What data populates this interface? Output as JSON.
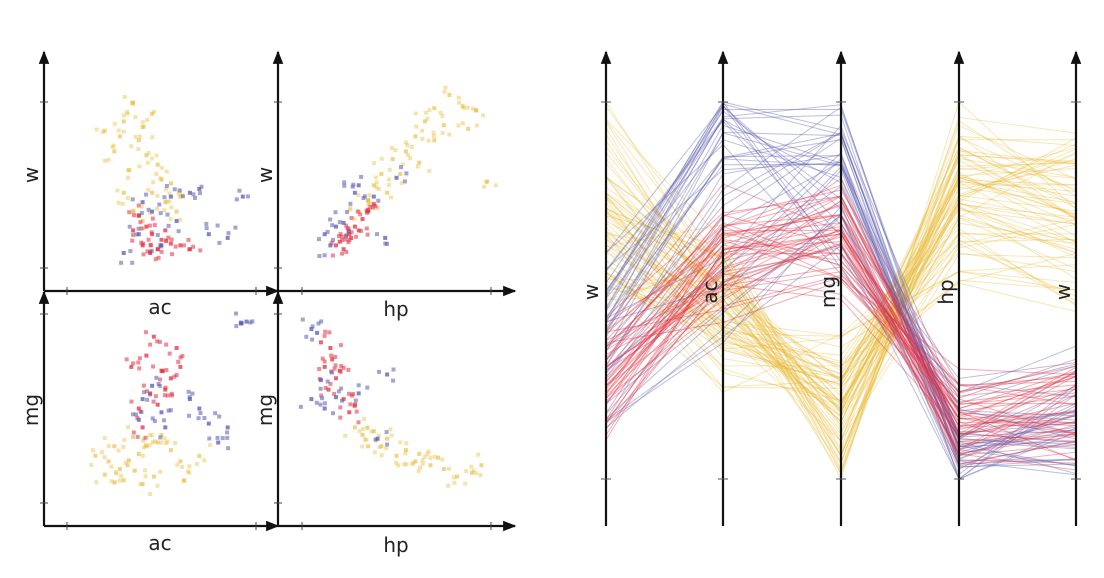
{
  "colors": {
    "yellow": "#e8b830",
    "red": "#e03040",
    "blue": "#5a5ab0",
    "axis": "#111111"
  },
  "chart_data": [
    {
      "type": "scatter",
      "panel": "scatter-w-vs-ac",
      "xlabel": "ac",
      "ylabel": "w",
      "series": [
        {
          "name": "yellow",
          "points": [
            [
              0.35,
              0.88
            ],
            [
              0.45,
              0.82
            ],
            [
              0.3,
              0.78
            ],
            [
              0.4,
              0.75
            ],
            [
              0.2,
              0.73
            ],
            [
              0.28,
              0.7
            ],
            [
              0.38,
              0.68
            ],
            [
              0.25,
              0.62
            ],
            [
              0.42,
              0.6
            ],
            [
              0.48,
              0.55
            ],
            [
              0.33,
              0.52
            ],
            [
              0.5,
              0.47
            ],
            [
              0.55,
              0.45
            ],
            [
              0.45,
              0.4
            ],
            [
              0.3,
              0.4
            ],
            [
              0.6,
              0.38
            ],
            [
              0.52,
              0.35
            ],
            [
              0.35,
              0.3
            ],
            [
              0.58,
              0.3
            ],
            [
              0.4,
              0.25
            ]
          ]
        },
        {
          "name": "red",
          "points": [
            [
              0.38,
              0.28
            ],
            [
              0.42,
              0.22
            ],
            [
              0.45,
              0.18
            ],
            [
              0.5,
              0.15
            ],
            [
              0.55,
              0.13
            ],
            [
              0.48,
              0.1
            ],
            [
              0.4,
              0.12
            ],
            [
              0.6,
              0.12
            ],
            [
              0.35,
              0.2
            ],
            [
              0.52,
              0.2
            ],
            [
              0.65,
              0.1
            ],
            [
              0.44,
              0.08
            ]
          ]
        },
        {
          "name": "blue",
          "points": [
            [
              0.4,
              0.35
            ],
            [
              0.55,
              0.38
            ],
            [
              0.65,
              0.4
            ],
            [
              0.7,
              0.42
            ],
            [
              0.45,
              0.3
            ],
            [
              0.38,
              0.18
            ],
            [
              0.5,
              0.12
            ],
            [
              0.75,
              0.18
            ],
            [
              0.85,
              0.16
            ],
            [
              0.93,
              0.38
            ],
            [
              0.3,
              0.08
            ],
            [
              0.58,
              0.25
            ]
          ]
        }
      ]
    },
    {
      "type": "scatter",
      "panel": "scatter-w-vs-hp",
      "xlabel": "hp",
      "ylabel": "w",
      "series": [
        {
          "name": "yellow",
          "points": [
            [
              0.78,
              0.92
            ],
            [
              0.7,
              0.85
            ],
            [
              0.85,
              0.86
            ],
            [
              0.92,
              0.84
            ],
            [
              0.65,
              0.78
            ],
            [
              0.75,
              0.76
            ],
            [
              0.88,
              0.74
            ],
            [
              0.6,
              0.7
            ],
            [
              0.7,
              0.68
            ],
            [
              0.55,
              0.62
            ],
            [
              0.48,
              0.58
            ],
            [
              0.62,
              0.56
            ],
            [
              0.42,
              0.5
            ],
            [
              0.52,
              0.5
            ],
            [
              0.38,
              0.44
            ],
            [
              0.45,
              0.4
            ],
            [
              0.35,
              0.36
            ],
            [
              0.4,
              0.32
            ],
            [
              0.3,
              0.3
            ],
            [
              0.98,
              0.46
            ]
          ]
        },
        {
          "name": "red",
          "points": [
            [
              0.2,
              0.14
            ],
            [
              0.25,
              0.18
            ],
            [
              0.28,
              0.22
            ],
            [
              0.32,
              0.26
            ],
            [
              0.35,
              0.3
            ],
            [
              0.22,
              0.1
            ],
            [
              0.18,
              0.12
            ],
            [
              0.3,
              0.2
            ],
            [
              0.38,
              0.34
            ],
            [
              0.26,
              0.16
            ]
          ]
        },
        {
          "name": "blue",
          "points": [
            [
              0.15,
              0.12
            ],
            [
              0.12,
              0.18
            ],
            [
              0.22,
              0.24
            ],
            [
              0.28,
              0.4
            ],
            [
              0.3,
              0.44
            ],
            [
              0.38,
              0.38
            ],
            [
              0.5,
              0.48
            ],
            [
              0.44,
              0.16
            ],
            [
              0.18,
              0.22
            ]
          ]
        }
      ]
    },
    {
      "type": "scatter",
      "panel": "scatter-mg-vs-ac",
      "xlabel": "ac",
      "ylabel": "mg",
      "series": [
        {
          "name": "yellow",
          "points": [
            [
              0.15,
              0.25
            ],
            [
              0.22,
              0.22
            ],
            [
              0.28,
              0.18
            ],
            [
              0.32,
              0.2
            ],
            [
              0.38,
              0.26
            ],
            [
              0.42,
              0.3
            ],
            [
              0.48,
              0.32
            ],
            [
              0.55,
              0.28
            ],
            [
              0.3,
              0.12
            ],
            [
              0.4,
              0.1
            ],
            [
              0.25,
              0.3
            ],
            [
              0.5,
              0.36
            ],
            [
              0.6,
              0.22
            ],
            [
              0.7,
              0.25
            ],
            [
              0.35,
              0.35
            ],
            [
              0.46,
              0.14
            ],
            [
              0.2,
              0.15
            ],
            [
              0.62,
              0.12
            ]
          ]
        },
        {
          "name": "red",
          "points": [
            [
              0.42,
              0.78
            ],
            [
              0.5,
              0.7
            ],
            [
              0.55,
              0.66
            ],
            [
              0.6,
              0.72
            ],
            [
              0.44,
              0.58
            ],
            [
              0.48,
              0.52
            ],
            [
              0.38,
              0.5
            ],
            [
              0.52,
              0.6
            ],
            [
              0.4,
              0.4
            ],
            [
              0.58,
              0.82
            ],
            [
              0.34,
              0.72
            ],
            [
              0.46,
              0.88
            ]
          ]
        },
        {
          "name": "blue",
          "points": [
            [
              0.45,
              0.62
            ],
            [
              0.4,
              0.55
            ],
            [
              0.5,
              0.48
            ],
            [
              0.65,
              0.55
            ],
            [
              0.7,
              0.5
            ],
            [
              0.75,
              0.42
            ],
            [
              0.8,
              0.32
            ],
            [
              0.92,
              0.95
            ],
            [
              0.95,
              0.96
            ],
            [
              0.38,
              0.44
            ],
            [
              0.52,
              0.4
            ],
            [
              0.85,
              0.4
            ]
          ]
        }
      ]
    },
    {
      "type": "scatter",
      "panel": "scatter-mg-vs-hp",
      "xlabel": "hp",
      "ylabel": "mg",
      "series": [
        {
          "name": "yellow",
          "points": [
            [
              0.28,
              0.4
            ],
            [
              0.32,
              0.36
            ],
            [
              0.38,
              0.38
            ],
            [
              0.42,
              0.3
            ],
            [
              0.55,
              0.28
            ],
            [
              0.6,
              0.22
            ],
            [
              0.68,
              0.2
            ],
            [
              0.75,
              0.18
            ],
            [
              0.82,
              0.14
            ],
            [
              0.9,
              0.16
            ],
            [
              0.95,
              0.2
            ],
            [
              0.5,
              0.25
            ],
            [
              0.35,
              0.3
            ],
            [
              0.45,
              0.34
            ],
            [
              0.62,
              0.26
            ],
            [
              0.72,
              0.24
            ]
          ]
        },
        {
          "name": "red",
          "points": [
            [
              0.1,
              0.85
            ],
            [
              0.15,
              0.82
            ],
            [
              0.12,
              0.72
            ],
            [
              0.18,
              0.66
            ],
            [
              0.14,
              0.6
            ],
            [
              0.22,
              0.55
            ],
            [
              0.25,
              0.48
            ],
            [
              0.2,
              0.7
            ],
            [
              0.28,
              0.52
            ],
            [
              0.16,
              0.76
            ]
          ]
        },
        {
          "name": "blue",
          "points": [
            [
              0.05,
              0.92
            ],
            [
              0.08,
              0.9
            ],
            [
              0.1,
              0.65
            ],
            [
              0.05,
              0.55
            ],
            [
              0.12,
              0.5
            ],
            [
              0.18,
              0.56
            ],
            [
              0.45,
              0.68
            ],
            [
              0.4,
              0.34
            ],
            [
              0.3,
              0.58
            ]
          ]
        }
      ]
    },
    {
      "type": "parallel-coordinates",
      "panel": "parallel-coordinates",
      "axes": [
        "w",
        "ac",
        "mg",
        "hp",
        "w"
      ],
      "series": [
        {
          "name": "yellow",
          "lines": [
            [
              0.95,
              0.55,
              0.1,
              0.9,
              0.9
            ],
            [
              0.85,
              0.45,
              0.15,
              0.85,
              0.8
            ],
            [
              0.8,
              0.4,
              0.2,
              0.8,
              0.7
            ],
            [
              0.75,
              0.5,
              0.12,
              0.75,
              0.85
            ],
            [
              0.7,
              0.35,
              0.25,
              0.7,
              0.6
            ],
            [
              0.65,
              0.6,
              0.08,
              0.95,
              0.75
            ],
            [
              0.6,
              0.45,
              0.18,
              0.65,
              0.65
            ],
            [
              0.55,
              0.3,
              0.3,
              0.6,
              0.55
            ],
            [
              0.72,
              0.52,
              0.22,
              0.88,
              0.72
            ],
            [
              0.68,
              0.38,
              0.28,
              0.78,
              0.78
            ],
            [
              0.58,
              0.42,
              0.35,
              0.55,
              0.5
            ],
            [
              0.5,
              0.55,
              0.2,
              0.72,
              0.62
            ]
          ]
        },
        {
          "name": "red",
          "lines": [
            [
              0.25,
              0.55,
              0.6,
              0.15,
              0.15
            ],
            [
              0.2,
              0.6,
              0.65,
              0.12,
              0.1
            ],
            [
              0.3,
              0.5,
              0.55,
              0.2,
              0.2
            ],
            [
              0.35,
              0.65,
              0.7,
              0.18,
              0.22
            ],
            [
              0.15,
              0.58,
              0.75,
              0.1,
              0.12
            ],
            [
              0.28,
              0.62,
              0.58,
              0.22,
              0.25
            ],
            [
              0.22,
              0.52,
              0.68,
              0.14,
              0.18
            ],
            [
              0.32,
              0.7,
              0.62,
              0.16,
              0.28
            ]
          ]
        },
        {
          "name": "blue",
          "lines": [
            [
              0.45,
              0.98,
              0.98,
              0.1,
              0.08
            ],
            [
              0.4,
              0.85,
              0.9,
              0.05,
              0.05
            ],
            [
              0.35,
              0.55,
              0.85,
              0.08,
              0.12
            ],
            [
              0.5,
              0.9,
              0.8,
              0.12,
              0.15
            ],
            [
              0.2,
              0.45,
              0.7,
              0.06,
              0.2
            ],
            [
              0.3,
              0.75,
              0.92,
              0.04,
              0.1
            ],
            [
              0.55,
              0.95,
              0.6,
              0.2,
              0.3
            ]
          ]
        }
      ]
    }
  ]
}
